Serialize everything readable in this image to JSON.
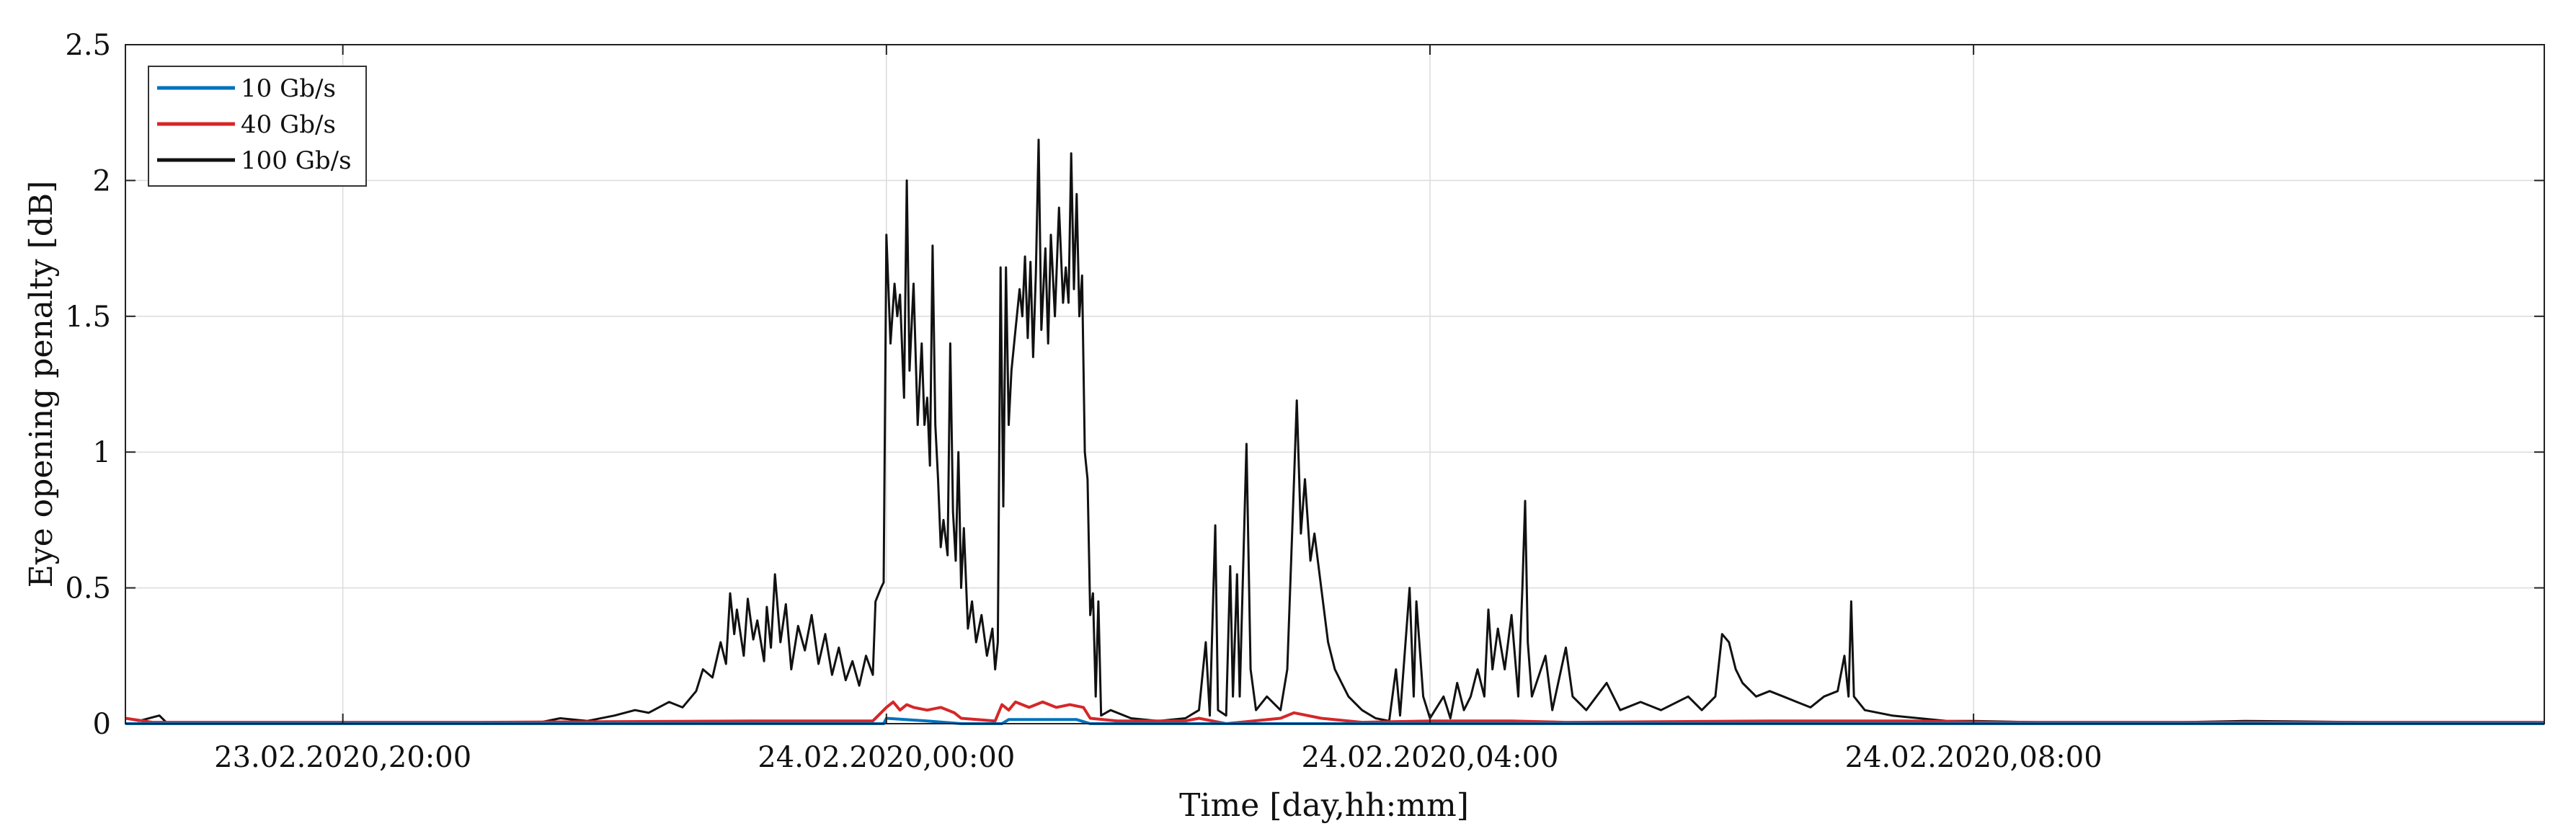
{
  "chart_data": {
    "type": "line",
    "title": "",
    "xlabel": "Time [day,hh:mm]",
    "ylabel": "Eye opening penalty [dB]",
    "grid": true,
    "legend_position": "top-left",
    "xlim_hours": [
      -5.6,
      12.2
    ],
    "ylim": [
      0,
      2.5
    ],
    "x_ticks": [
      {
        "hour": -4,
        "label": "23.02.2020,20:00"
      },
      {
        "hour": 0,
        "label": "24.02.2020,00:00"
      },
      {
        "hour": 4,
        "label": "24.02.2020,04:00"
      },
      {
        "hour": 8,
        "label": "24.02.2020,08:00"
      }
    ],
    "y_ticks": [
      {
        "value": 0,
        "label": "0"
      },
      {
        "value": 0.5,
        "label": "0.5"
      },
      {
        "value": 1,
        "label": "1"
      },
      {
        "value": 1.5,
        "label": "1.5"
      },
      {
        "value": 2,
        "label": "2"
      },
      {
        "value": 2.5,
        "label": "2.5"
      }
    ],
    "series": [
      {
        "name": "10 Gb/s",
        "color": "#0072BD",
        "points": [
          [
            -5.6,
            0.0
          ],
          [
            -0.02,
            0.0
          ],
          [
            0.0,
            0.02
          ],
          [
            0.3,
            0.01
          ],
          [
            0.55,
            0.0
          ],
          [
            0.85,
            0.0
          ],
          [
            0.9,
            0.015
          ],
          [
            1.4,
            0.015
          ],
          [
            1.5,
            0.0
          ],
          [
            12.2,
            0.0
          ]
        ]
      },
      {
        "name": "40 Gb/s",
        "color": "#D62728",
        "points": [
          [
            -5.6,
            0.02
          ],
          [
            -5.4,
            0.005
          ],
          [
            -3.0,
            0.005
          ],
          [
            -1.0,
            0.01
          ],
          [
            -0.1,
            0.01
          ],
          [
            0.0,
            0.06
          ],
          [
            0.05,
            0.08
          ],
          [
            0.1,
            0.05
          ],
          [
            0.15,
            0.07
          ],
          [
            0.2,
            0.06
          ],
          [
            0.3,
            0.05
          ],
          [
            0.4,
            0.06
          ],
          [
            0.5,
            0.04
          ],
          [
            0.55,
            0.02
          ],
          [
            0.8,
            0.01
          ],
          [
            0.85,
            0.07
          ],
          [
            0.9,
            0.05
          ],
          [
            0.95,
            0.08
          ],
          [
            1.05,
            0.06
          ],
          [
            1.15,
            0.08
          ],
          [
            1.25,
            0.06
          ],
          [
            1.35,
            0.07
          ],
          [
            1.45,
            0.06
          ],
          [
            1.5,
            0.02
          ],
          [
            1.7,
            0.01
          ],
          [
            2.2,
            0.01
          ],
          [
            2.3,
            0.02
          ],
          [
            2.5,
            0.0
          ],
          [
            2.9,
            0.02
          ],
          [
            3.0,
            0.04
          ],
          [
            3.2,
            0.02
          ],
          [
            3.5,
            0.005
          ],
          [
            4.0,
            0.01
          ],
          [
            4.6,
            0.01
          ],
          [
            5.0,
            0.005
          ],
          [
            6.5,
            0.01
          ],
          [
            7.5,
            0.01
          ],
          [
            8.2,
            0.005
          ],
          [
            12.2,
            0.005
          ]
        ]
      },
      {
        "name": "100 Gb/s",
        "color": "#111111",
        "points": [
          [
            -5.6,
            0.02
          ],
          [
            -5.5,
            0.01
          ],
          [
            -5.35,
            0.03
          ],
          [
            -5.3,
            0.005
          ],
          [
            -4.5,
            0.0
          ],
          [
            -3.0,
            0.0
          ],
          [
            -2.6,
            0.0
          ],
          [
            -2.4,
            0.02
          ],
          [
            -2.2,
            0.01
          ],
          [
            -2.0,
            0.03
          ],
          [
            -1.85,
            0.05
          ],
          [
            -1.75,
            0.04
          ],
          [
            -1.6,
            0.08
          ],
          [
            -1.5,
            0.06
          ],
          [
            -1.4,
            0.12
          ],
          [
            -1.35,
            0.2
          ],
          [
            -1.28,
            0.17
          ],
          [
            -1.22,
            0.3
          ],
          [
            -1.18,
            0.22
          ],
          [
            -1.15,
            0.48
          ],
          [
            -1.12,
            0.33
          ],
          [
            -1.1,
            0.42
          ],
          [
            -1.05,
            0.25
          ],
          [
            -1.02,
            0.46
          ],
          [
            -0.98,
            0.31
          ],
          [
            -0.95,
            0.38
          ],
          [
            -0.9,
            0.23
          ],
          [
            -0.88,
            0.43
          ],
          [
            -0.85,
            0.28
          ],
          [
            -0.82,
            0.55
          ],
          [
            -0.78,
            0.3
          ],
          [
            -0.74,
            0.44
          ],
          [
            -0.7,
            0.2
          ],
          [
            -0.65,
            0.36
          ],
          [
            -0.6,
            0.27
          ],
          [
            -0.55,
            0.4
          ],
          [
            -0.5,
            0.22
          ],
          [
            -0.45,
            0.33
          ],
          [
            -0.4,
            0.18
          ],
          [
            -0.35,
            0.28
          ],
          [
            -0.3,
            0.16
          ],
          [
            -0.25,
            0.23
          ],
          [
            -0.2,
            0.14
          ],
          [
            -0.15,
            0.25
          ],
          [
            -0.1,
            0.18
          ],
          [
            -0.08,
            0.45
          ],
          [
            -0.04,
            0.5
          ],
          [
            -0.02,
            0.52
          ],
          [
            0.0,
            1.8
          ],
          [
            0.03,
            1.4
          ],
          [
            0.06,
            1.62
          ],
          [
            0.08,
            1.5
          ],
          [
            0.1,
            1.58
          ],
          [
            0.13,
            1.2
          ],
          [
            0.15,
            2.0
          ],
          [
            0.17,
            1.3
          ],
          [
            0.2,
            1.62
          ],
          [
            0.23,
            1.1
          ],
          [
            0.26,
            1.4
          ],
          [
            0.28,
            1.1
          ],
          [
            0.3,
            1.2
          ],
          [
            0.32,
            0.95
          ],
          [
            0.34,
            1.76
          ],
          [
            0.36,
            1.1
          ],
          [
            0.38,
            0.9
          ],
          [
            0.4,
            0.65
          ],
          [
            0.42,
            0.75
          ],
          [
            0.45,
            0.62
          ],
          [
            0.47,
            1.4
          ],
          [
            0.49,
            0.78
          ],
          [
            0.51,
            0.6
          ],
          [
            0.53,
            1.0
          ],
          [
            0.55,
            0.5
          ],
          [
            0.57,
            0.72
          ],
          [
            0.6,
            0.35
          ],
          [
            0.63,
            0.45
          ],
          [
            0.66,
            0.3
          ],
          [
            0.7,
            0.4
          ],
          [
            0.74,
            0.25
          ],
          [
            0.78,
            0.35
          ],
          [
            0.8,
            0.2
          ],
          [
            0.82,
            0.3
          ],
          [
            0.84,
            1.68
          ],
          [
            0.86,
            0.8
          ],
          [
            0.88,
            1.68
          ],
          [
            0.9,
            1.1
          ],
          [
            0.92,
            1.3
          ],
          [
            0.95,
            1.45
          ],
          [
            0.98,
            1.6
          ],
          [
            1.0,
            1.5
          ],
          [
            1.02,
            1.72
          ],
          [
            1.04,
            1.42
          ],
          [
            1.06,
            1.7
          ],
          [
            1.08,
            1.35
          ],
          [
            1.1,
            1.66
          ],
          [
            1.12,
            2.15
          ],
          [
            1.14,
            1.45
          ],
          [
            1.17,
            1.75
          ],
          [
            1.19,
            1.4
          ],
          [
            1.21,
            1.8
          ],
          [
            1.24,
            1.5
          ],
          [
            1.27,
            1.9
          ],
          [
            1.3,
            1.55
          ],
          [
            1.32,
            1.68
          ],
          [
            1.34,
            1.55
          ],
          [
            1.36,
            2.1
          ],
          [
            1.38,
            1.6
          ],
          [
            1.4,
            1.95
          ],
          [
            1.42,
            1.5
          ],
          [
            1.44,
            1.65
          ],
          [
            1.46,
            1.0
          ],
          [
            1.48,
            0.9
          ],
          [
            1.5,
            0.4
          ],
          [
            1.52,
            0.48
          ],
          [
            1.54,
            0.1
          ],
          [
            1.56,
            0.45
          ],
          [
            1.58,
            0.03
          ],
          [
            1.65,
            0.05
          ],
          [
            1.8,
            0.02
          ],
          [
            2.0,
            0.01
          ],
          [
            2.2,
            0.02
          ],
          [
            2.3,
            0.05
          ],
          [
            2.35,
            0.3
          ],
          [
            2.38,
            0.03
          ],
          [
            2.42,
            0.73
          ],
          [
            2.44,
            0.05
          ],
          [
            2.5,
            0.03
          ],
          [
            2.53,
            0.58
          ],
          [
            2.55,
            0.1
          ],
          [
            2.58,
            0.55
          ],
          [
            2.6,
            0.1
          ],
          [
            2.65,
            1.03
          ],
          [
            2.68,
            0.2
          ],
          [
            2.72,
            0.05
          ],
          [
            2.8,
            0.1
          ],
          [
            2.9,
            0.05
          ],
          [
            2.95,
            0.2
          ],
          [
            3.0,
            0.9
          ],
          [
            3.02,
            1.19
          ],
          [
            3.05,
            0.7
          ],
          [
            3.08,
            0.9
          ],
          [
            3.12,
            0.6
          ],
          [
            3.15,
            0.7
          ],
          [
            3.2,
            0.5
          ],
          [
            3.25,
            0.3
          ],
          [
            3.3,
            0.2
          ],
          [
            3.35,
            0.15
          ],
          [
            3.4,
            0.1
          ],
          [
            3.5,
            0.05
          ],
          [
            3.6,
            0.02
          ],
          [
            3.7,
            0.01
          ],
          [
            3.75,
            0.2
          ],
          [
            3.78,
            0.03
          ],
          [
            3.85,
            0.5
          ],
          [
            3.88,
            0.1
          ],
          [
            3.9,
            0.45
          ],
          [
            3.95,
            0.1
          ],
          [
            4.0,
            0.02
          ],
          [
            4.1,
            0.1
          ],
          [
            4.15,
            0.02
          ],
          [
            4.2,
            0.15
          ],
          [
            4.25,
            0.05
          ],
          [
            4.3,
            0.1
          ],
          [
            4.35,
            0.2
          ],
          [
            4.4,
            0.1
          ],
          [
            4.43,
            0.42
          ],
          [
            4.46,
            0.2
          ],
          [
            4.5,
            0.35
          ],
          [
            4.55,
            0.2
          ],
          [
            4.6,
            0.4
          ],
          [
            4.65,
            0.1
          ],
          [
            4.68,
            0.5
          ],
          [
            4.7,
            0.82
          ],
          [
            4.72,
            0.3
          ],
          [
            4.75,
            0.1
          ],
          [
            4.85,
            0.25
          ],
          [
            4.9,
            0.05
          ],
          [
            5.0,
            0.28
          ],
          [
            5.05,
            0.1
          ],
          [
            5.15,
            0.05
          ],
          [
            5.3,
            0.15
          ],
          [
            5.4,
            0.05
          ],
          [
            5.55,
            0.08
          ],
          [
            5.7,
            0.05
          ],
          [
            5.9,
            0.1
          ],
          [
            6.0,
            0.05
          ],
          [
            6.1,
            0.1
          ],
          [
            6.15,
            0.33
          ],
          [
            6.2,
            0.3
          ],
          [
            6.25,
            0.2
          ],
          [
            6.3,
            0.15
          ],
          [
            6.4,
            0.1
          ],
          [
            6.5,
            0.12
          ],
          [
            6.6,
            0.1
          ],
          [
            6.7,
            0.08
          ],
          [
            6.8,
            0.06
          ],
          [
            6.9,
            0.1
          ],
          [
            7.0,
            0.12
          ],
          [
            7.05,
            0.25
          ],
          [
            7.08,
            0.1
          ],
          [
            7.1,
            0.45
          ],
          [
            7.12,
            0.1
          ],
          [
            7.2,
            0.05
          ],
          [
            7.4,
            0.03
          ],
          [
            7.6,
            0.02
          ],
          [
            7.8,
            0.01
          ],
          [
            8.0,
            0.01
          ],
          [
            8.5,
            0.005
          ],
          [
            9.5,
            0.005
          ],
          [
            10.0,
            0.01
          ],
          [
            11.0,
            0.005
          ],
          [
            12.2,
            0.005
          ]
        ]
      }
    ]
  }
}
